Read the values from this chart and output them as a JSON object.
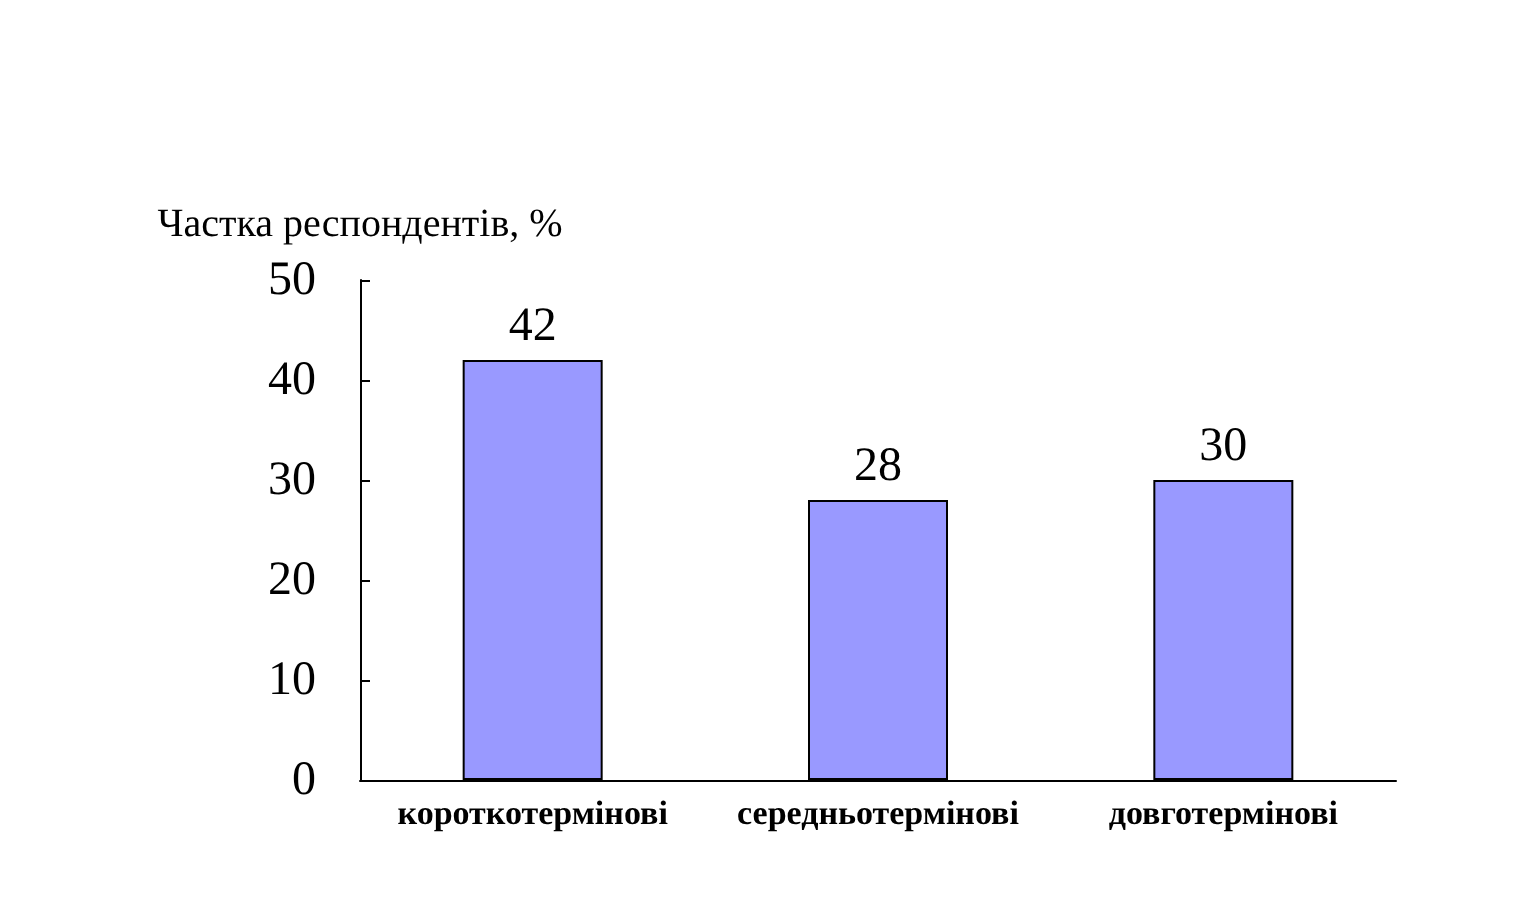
{
  "chart_data": {
    "type": "bar",
    "ylabel": "Частка респондентів, %",
    "categories": [
      "короткотермінові",
      "середньотермінові",
      "довготермінові"
    ],
    "values": [
      42,
      28,
      30
    ],
    "color": "#9999ff",
    "ylim": [
      0,
      50
    ],
    "yticks": [
      0,
      10,
      20,
      30,
      40,
      50
    ],
    "grid": false,
    "data_labels": true
  }
}
